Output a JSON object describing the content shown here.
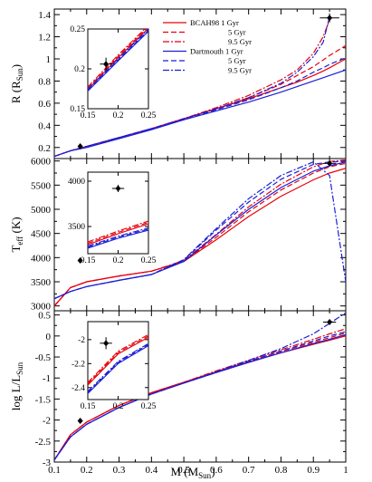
{
  "figure": {
    "xlabel_main": "M (M",
    "xlabel_sub": "Sun",
    "xlabel_end": ")",
    "x_ticks": [
      "0.1",
      "0.2",
      "0.3",
      "0.4",
      "0.5",
      "0.6",
      "0.7",
      "0.8",
      "0.9",
      "1"
    ]
  },
  "legend": {
    "entries": [
      {
        "label": "BCAH98  1 Gyr",
        "color": "#e8000b",
        "dash": "solid"
      },
      {
        "label": "5 Gyr",
        "color": "#e8000b",
        "dash": "dash"
      },
      {
        "label": "9.5 Gyr",
        "color": "#e8000b",
        "dash": "dashdot"
      },
      {
        "label": "Dartmouth 1 Gyr",
        "color": "#1a1fd6",
        "dash": "solid"
      },
      {
        "label": "5 Gyr",
        "color": "#1a1fd6",
        "dash": "dash"
      },
      {
        "label": "9.5 Gyr",
        "color": "#1a1fd6",
        "dash": "dashdot"
      }
    ]
  },
  "chart_data": [
    {
      "type": "line",
      "panel": "radius",
      "ylabel": "R (R_Sun)",
      "ylabel_main": "R (R",
      "ylabel_sub": "Sun",
      "ylabel_end": ")",
      "xlim": [
        0.1,
        1.0
      ],
      "ylim": [
        0.1,
        1.45
      ],
      "y_ticks": [
        "0.2",
        "0.4",
        "0.6",
        "0.8",
        "1",
        "1.2",
        "1.4"
      ],
      "x": [
        0.1,
        0.15,
        0.2,
        0.3,
        0.4,
        0.5,
        0.6,
        0.7,
        0.8,
        0.85,
        0.9,
        0.93,
        0.95,
        1.0
      ],
      "series": [
        {
          "name": "BCAH98 1 Gyr",
          "color": "#e8000b",
          "dash": "solid",
          "values": [
            0.12,
            0.17,
            0.21,
            0.29,
            0.37,
            0.46,
            0.55,
            0.64,
            0.74,
            0.79,
            0.85,
            0.89,
            0.92,
            1.0
          ]
        },
        {
          "name": "BCAH98 5 Gyr",
          "color": "#e8000b",
          "dash": "dash",
          "values": [
            0.12,
            0.17,
            0.21,
            0.29,
            0.37,
            0.46,
            0.55,
            0.65,
            0.77,
            0.85,
            0.93,
            0.99,
            1.03,
            1.12
          ]
        },
        {
          "name": "BCAH98 9.5 Gyr",
          "color": "#e8000b",
          "dash": "dashdot",
          "values": [
            0.12,
            0.17,
            0.21,
            0.29,
            0.37,
            0.46,
            0.56,
            0.67,
            0.81,
            0.9,
            1.05,
            1.2,
            1.35,
            null
          ]
        },
        {
          "name": "Dartmouth 1 Gyr",
          "color": "#1a1fd6",
          "dash": "solid",
          "values": [
            0.12,
            0.17,
            0.2,
            0.28,
            0.36,
            0.45,
            0.53,
            0.61,
            0.7,
            0.75,
            0.8,
            0.83,
            0.85,
            0.9
          ]
        },
        {
          "name": "Dartmouth 5 Gyr",
          "color": "#1a1fd6",
          "dash": "dash",
          "values": [
            0.12,
            0.17,
            0.21,
            0.29,
            0.37,
            0.45,
            0.54,
            0.63,
            0.74,
            0.8,
            0.88,
            0.92,
            0.95,
            1.01
          ]
        },
        {
          "name": "Dartmouth 9.5 Gyr",
          "color": "#1a1fd6",
          "dash": "dashdot",
          "values": [
            0.12,
            0.17,
            0.21,
            0.29,
            0.37,
            0.46,
            0.55,
            0.65,
            0.78,
            0.88,
            1.02,
            1.15,
            1.38,
            null
          ]
        }
      ],
      "observations": [
        {
          "x": 0.18,
          "y": 0.21,
          "xerr": 0.0,
          "yerr": 0.0
        },
        {
          "x": 0.95,
          "y": 1.37,
          "xerr": 0.03,
          "yerr": 0.04
        }
      ],
      "inset": {
        "xlim": [
          0.15,
          0.25
        ],
        "ylim": [
          0.15,
          0.25
        ],
        "x_ticks": [
          "0.15",
          "0.2",
          "0.25"
        ],
        "y_ticks": [
          "0.15",
          "0.2",
          "0.25"
        ],
        "x": [
          0.15,
          0.2,
          0.25
        ],
        "red_values": [
          0.174,
          0.214,
          0.251
        ],
        "blue_values": [
          0.172,
          0.21,
          0.247
        ],
        "observation": {
          "x": 0.18,
          "y": 0.206,
          "xerr": 0.01,
          "yerr": 0.008
        }
      }
    },
    {
      "type": "line",
      "panel": "teff",
      "ylabel": "T_eff (K)",
      "ylabel_main": "T",
      "ylabel_sub": "eff",
      "ylabel_end": " (K)",
      "xlim": [
        0.1,
        1.0
      ],
      "ylim": [
        2900,
        6050
      ],
      "y_ticks": [
        "3000",
        "3500",
        "4000",
        "4500",
        "5000",
        "5500",
        "6000"
      ],
      "x": [
        0.1,
        0.15,
        0.2,
        0.3,
        0.4,
        0.5,
        0.6,
        0.7,
        0.8,
        0.9,
        0.95,
        1.0
      ],
      "series": [
        {
          "name": "BCAH98 1 Gyr",
          "color": "#e8000b",
          "dash": "solid",
          "values": [
            3000,
            3380,
            3500,
            3620,
            3720,
            3920,
            4370,
            4850,
            5270,
            5610,
            5750,
            5850
          ]
        },
        {
          "name": "BCAH98 5 Gyr",
          "color": "#e8000b",
          "dash": "dash",
          "values": [
            3000,
            3380,
            3500,
            3620,
            3720,
            3920,
            4420,
            4950,
            5400,
            5750,
            5880,
            5950
          ]
        },
        {
          "name": "BCAH98 9.5 Gyr",
          "color": "#e8000b",
          "dash": "dashdot",
          "values": [
            3000,
            3380,
            3500,
            3620,
            3720,
            3940,
            4480,
            5050,
            5520,
            5880,
            5990,
            6020
          ]
        },
        {
          "name": "Dartmouth 1 Gyr",
          "color": "#1a1fd6",
          "dash": "solid",
          "values": [
            3150,
            3300,
            3400,
            3530,
            3650,
            3920,
            4470,
            5000,
            5450,
            5790,
            5900,
            5980
          ]
        },
        {
          "name": "Dartmouth 5 Gyr",
          "color": "#1a1fd6",
          "dash": "dash",
          "values": [
            3150,
            3300,
            3400,
            3530,
            3650,
            3950,
            4570,
            5150,
            5620,
            5930,
            5980,
            5990
          ]
        },
        {
          "name": "Dartmouth 9.5 Gyr",
          "color": "#1a1fd6",
          "dash": "dashdot",
          "values": [
            3150,
            3300,
            3400,
            3530,
            3650,
            3960,
            4600,
            5220,
            5700,
            5980,
            5700,
            3500
          ]
        }
      ],
      "observations": [
        {
          "x": 0.18,
          "y": 3940,
          "xerr": 0.0,
          "yerr": 0.0
        },
        {
          "x": 0.95,
          "y": 5950,
          "xerr": 0.02,
          "yerr": 60
        }
      ],
      "inset": {
        "xlim": [
          0.15,
          0.25
        ],
        "ylim": [
          3200,
          4100
        ],
        "x_ticks": [
          "0.15",
          "0.2",
          "0.25"
        ],
        "y_ticks": [
          "3500",
          "4000"
        ],
        "x": [
          0.15,
          0.2,
          0.25
        ],
        "red_values": [
          3300,
          3420,
          3530
        ],
        "blue_values": [
          3260,
          3370,
          3460
        ],
        "observation": {
          "x": 0.2,
          "y": 3920,
          "xerr": 0.01,
          "yerr": 40
        }
      }
    },
    {
      "type": "line",
      "panel": "luminosity",
      "ylabel": "log L/L_Sun",
      "ylabel_main": "log L/L",
      "ylabel_sub": "Sun",
      "ylabel_end": "",
      "xlim": [
        0.1,
        1.0
      ],
      "ylim": [
        -3.0,
        0.6
      ],
      "y_ticks": [
        "-3",
        "-2.5",
        "-2",
        "-1.5",
        "-1",
        "-0.5",
        "0",
        "0.5"
      ],
      "x": [
        0.1,
        0.15,
        0.2,
        0.3,
        0.4,
        0.5,
        0.6,
        0.7,
        0.8,
        0.9,
        0.95,
        1.0
      ],
      "series": [
        {
          "name": "BCAH98 1 Gyr",
          "color": "#e8000b",
          "dash": "solid",
          "values": [
            -2.95,
            -2.35,
            -2.05,
            -1.65,
            -1.35,
            -1.1,
            -0.85,
            -0.62,
            -0.4,
            -0.2,
            -0.1,
            0.0
          ]
        },
        {
          "name": "BCAH98 5 Gyr",
          "color": "#e8000b",
          "dash": "dash",
          "values": [
            -2.95,
            -2.35,
            -2.05,
            -1.65,
            -1.35,
            -1.1,
            -0.85,
            -0.6,
            -0.37,
            -0.15,
            -0.04,
            0.07
          ]
        },
        {
          "name": "BCAH98 9.5 Gyr",
          "color": "#e8000b",
          "dash": "dashdot",
          "values": [
            -2.95,
            -2.35,
            -2.05,
            -1.65,
            -1.35,
            -1.1,
            -0.83,
            -0.58,
            -0.33,
            -0.08,
            0.05,
            0.17
          ]
        },
        {
          "name": "Dartmouth 1 Gyr",
          "color": "#1a1fd6",
          "dash": "solid",
          "values": [
            -2.95,
            -2.4,
            -2.1,
            -1.7,
            -1.38,
            -1.12,
            -0.87,
            -0.63,
            -0.4,
            -0.18,
            -0.08,
            0.03
          ]
        },
        {
          "name": "Dartmouth 5 Gyr",
          "color": "#1a1fd6",
          "dash": "dash",
          "values": [
            -2.95,
            -2.4,
            -2.1,
            -1.7,
            -1.38,
            -1.12,
            -0.87,
            -0.61,
            -0.36,
            -0.12,
            0.0,
            0.1
          ]
        },
        {
          "name": "Dartmouth 9.5 Gyr",
          "color": "#1a1fd6",
          "dash": "dashdot",
          "values": [
            -2.95,
            -2.4,
            -2.1,
            -1.7,
            -1.38,
            -1.12,
            -0.85,
            -0.58,
            -0.3,
            0.05,
            0.3,
            0.55
          ]
        }
      ],
      "observations": [
        {
          "x": 0.18,
          "y": -2.02,
          "xerr": 0.0,
          "yerr": 0.0
        },
        {
          "x": 0.95,
          "y": 0.33,
          "xerr": 0.02,
          "yerr": 0.03
        }
      ],
      "inset": {
        "xlim": [
          0.15,
          0.25
        ],
        "ylim": [
          -2.5,
          -1.85
        ],
        "x_ticks": [
          "0.15",
          "0.2",
          "0.25"
        ],
        "y_ticks": [
          "-2.4",
          "-2.2",
          "-2"
        ],
        "x": [
          0.15,
          0.2,
          0.25
        ],
        "red_values": [
          -2.38,
          -2.12,
          -1.98
        ],
        "blue_values": [
          -2.45,
          -2.2,
          -2.05
        ],
        "observation": {
          "x": 0.18,
          "y": -2.03,
          "xerr": 0.01,
          "yerr": 0.05
        }
      }
    }
  ]
}
